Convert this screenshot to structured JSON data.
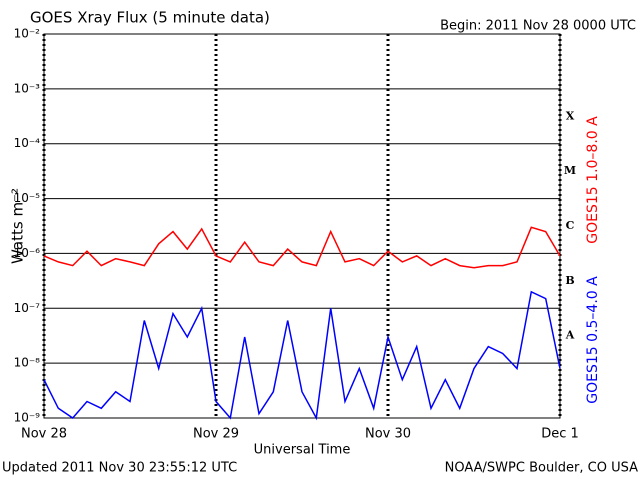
{
  "chart_data": {
    "type": "line",
    "title": "GOES Xray Flux (5 minute data)",
    "subtitle": "Begin:  2011 Nov 28 0000 UTC",
    "y_label": "Watts m⁻²",
    "x_label": "Universal Time",
    "footer_left": "Updated 2011 Nov 30 23:55:12 UTC",
    "footer_right": "NOAA/SWPC Boulder, CO USA",
    "flux_classes": [
      "X",
      "M",
      "C",
      "B",
      "A"
    ],
    "log_scale": true,
    "grid": true,
    "xlim": [
      0,
      72
    ],
    "xticks": [
      {
        "value": 0,
        "label": "Nov 28"
      },
      {
        "value": 24,
        "label": "Nov 29"
      },
      {
        "value": 48,
        "label": "Nov 30"
      },
      {
        "value": 72,
        "label": "Dec 1"
      }
    ],
    "ylim": [
      1e-09,
      0.01
    ],
    "yticks": [
      {
        "value": 1e-09,
        "label": "10⁻⁹"
      },
      {
        "value": 1e-08,
        "label": "10⁻⁸"
      },
      {
        "value": 1e-07,
        "label": "10⁻⁷"
      },
      {
        "value": 1e-06,
        "label": "10⁻⁶"
      },
      {
        "value": 1e-05,
        "label": "10⁻⁵"
      },
      {
        "value": 0.0001,
        "label": "10⁻⁴"
      },
      {
        "value": 0.001,
        "label": "10⁻³"
      },
      {
        "value": 0.01,
        "label": "10⁻²"
      }
    ],
    "x": [
      0,
      2,
      4,
      6,
      8,
      10,
      12,
      14,
      16,
      18,
      20,
      22,
      24,
      26,
      28,
      30,
      32,
      34,
      36,
      38,
      40,
      42,
      44,
      46,
      48,
      50,
      52,
      54,
      56,
      58,
      60,
      62,
      64,
      66,
      68,
      70,
      72
    ],
    "series": [
      {
        "name": "GOES15 1.0–8.0 A",
        "color": "#ff0000",
        "values": [
          9e-07,
          7e-07,
          6e-07,
          1.1e-06,
          6e-07,
          8e-07,
          7e-07,
          6e-07,
          1.5e-06,
          2.5e-06,
          1.2e-06,
          2.8e-06,
          9e-07,
          7e-07,
          1.6e-06,
          7e-07,
          6e-07,
          1.2e-06,
          7e-07,
          6e-07,
          2.5e-06,
          7e-07,
          8e-07,
          6e-07,
          1.1e-06,
          7e-07,
          9e-07,
          6e-07,
          8e-07,
          6e-07,
          5.5e-07,
          6e-07,
          6e-07,
          7e-07,
          3e-06,
          2.5e-06,
          9e-07
        ]
      },
      {
        "name": "GOES15 0.5–4.0 A",
        "color": "#0000ff",
        "values": [
          5e-09,
          1.5e-09,
          1e-09,
          2e-09,
          1.5e-09,
          3e-09,
          2e-09,
          6e-08,
          8e-09,
          8e-08,
          3e-08,
          1e-07,
          2e-09,
          1e-09,
          3e-08,
          1.2e-09,
          3e-09,
          6e-08,
          3e-09,
          1e-09,
          1e-07,
          2e-09,
          8e-09,
          1.5e-09,
          3e-08,
          5e-09,
          2e-08,
          1.5e-09,
          5e-09,
          1.5e-09,
          8e-09,
          2e-08,
          1.5e-08,
          8e-09,
          2e-07,
          1.5e-07,
          8e-09
        ]
      }
    ]
  }
}
